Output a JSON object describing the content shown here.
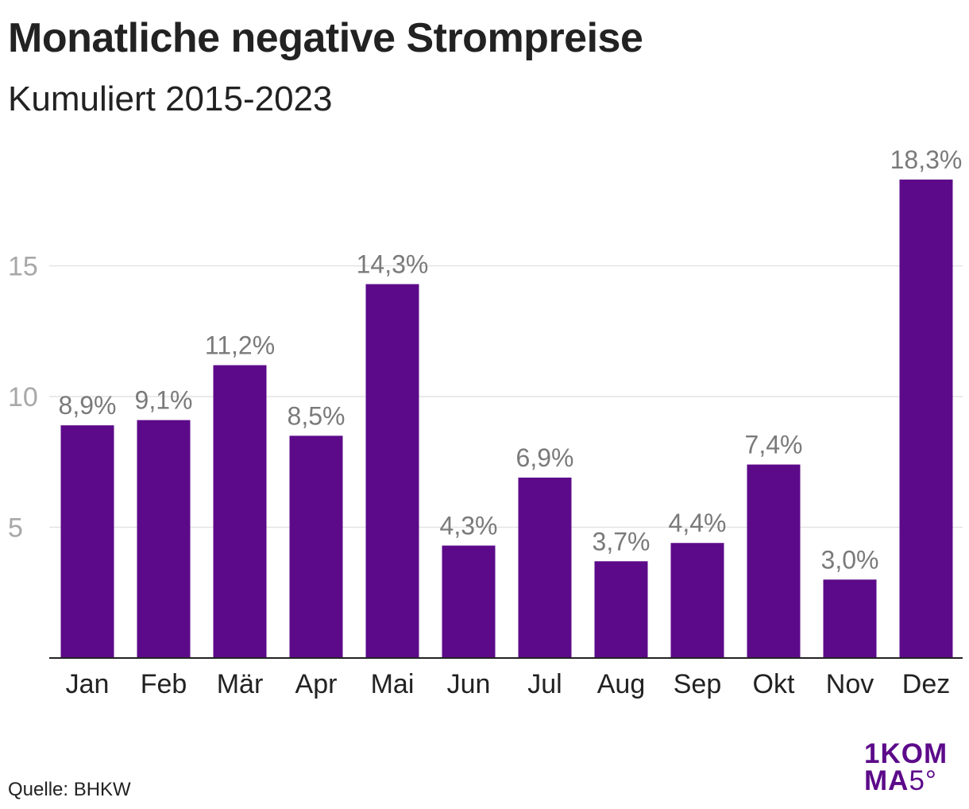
{
  "header": {
    "title": "Monatliche negative Strompreise",
    "subtitle": "Kumuliert 2015-2023"
  },
  "footer": {
    "source": "Quelle: BHKW"
  },
  "logo": {
    "line1": "1KOM",
    "line2_a": "MA",
    "line2_b": "5°",
    "color": "#5c0a8a"
  },
  "chart_data": {
    "type": "bar",
    "categories": [
      "Jan",
      "Feb",
      "Mär",
      "Apr",
      "Mai",
      "Jun",
      "Jul",
      "Aug",
      "Sep",
      "Okt",
      "Nov",
      "Dez"
    ],
    "values": [
      8.9,
      9.1,
      11.2,
      8.5,
      14.3,
      4.3,
      6.9,
      3.7,
      4.4,
      7.4,
      3.0,
      18.3
    ],
    "data_labels": [
      "8,9%",
      "9,1%",
      "11,2%",
      "8,5%",
      "14,3%",
      "4,3%",
      "6,9%",
      "3,7%",
      "4,4%",
      "7,4%",
      "3,0%",
      "18,3%"
    ],
    "y_ticks": [
      5,
      10,
      15
    ],
    "y_tick_labels": [
      "5",
      "10",
      "15"
    ],
    "ylim": [
      0,
      20
    ],
    "grid": true,
    "bar_color": "#5c0a8a",
    "grid_color": "#e3e3e3",
    "tick_label_color": "#a8a8a8",
    "data_label_color": "#7a7a7a"
  }
}
